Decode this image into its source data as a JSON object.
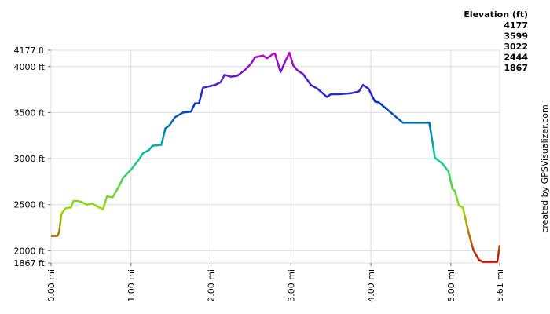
{
  "chart_data": {
    "type": "line",
    "x": [
      0,
      0.08,
      0.1,
      0.13,
      0.18,
      0.25,
      0.28,
      0.33,
      0.38,
      0.45,
      0.52,
      0.6,
      0.65,
      0.7,
      0.77,
      0.85,
      0.9,
      1.0,
      1.1,
      1.15,
      1.22,
      1.27,
      1.38,
      1.43,
      1.48,
      1.55,
      1.65,
      1.75,
      1.8,
      1.85,
      1.9,
      1.95,
      2.05,
      2.12,
      2.17,
      2.25,
      2.33,
      2.42,
      2.5,
      2.55,
      2.65,
      2.7,
      2.78,
      2.8,
      2.87,
      2.93,
      2.98,
      3.03,
      3.08,
      3.15,
      3.25,
      3.33,
      3.45,
      3.5,
      3.6,
      3.75,
      3.85,
      3.9,
      3.97,
      4.05,
      4.1,
      4.4,
      4.73,
      4.77,
      4.8,
      4.9,
      4.97,
      5.02,
      5.05,
      5.1,
      5.15,
      5.22,
      5.28,
      5.35,
      5.4,
      5.58,
      5.61
    ],
    "values": [
      2160,
      2160,
      2200,
      2400,
      2460,
      2470,
      2540,
      2540,
      2530,
      2500,
      2510,
      2470,
      2450,
      2590,
      2580,
      2700,
      2790,
      2880,
      2990,
      3060,
      3090,
      3140,
      3150,
      3330,
      3360,
      3450,
      3500,
      3510,
      3600,
      3600,
      3770,
      3780,
      3800,
      3830,
      3910,
      3890,
      3900,
      3960,
      4030,
      4100,
      4120,
      4090,
      4140,
      4140,
      3940,
      4060,
      4150,
      4010,
      3960,
      3920,
      3800,
      3760,
      3670,
      3700,
      3700,
      3710,
      3730,
      3800,
      3760,
      3620,
      3610,
      3390,
      3390,
      3180,
      3010,
      2940,
      2860,
      2670,
      2650,
      2490,
      2470,
      2200,
      2010,
      1900,
      1880,
      1880,
      2060
    ],
    "xlim": [
      0,
      5.61
    ],
    "ylim": [
      1867,
      4177
    ],
    "xticks": [
      {
        "value": 0,
        "label": "0.00 mi"
      },
      {
        "value": 1,
        "label": "1.00 mi"
      },
      {
        "value": 2,
        "label": "2.00 mi"
      },
      {
        "value": 3,
        "label": "3.00 mi"
      },
      {
        "value": 4,
        "label": "4.00 mi"
      },
      {
        "value": 5,
        "label": "5.00 mi"
      },
      {
        "value": 5.61,
        "label": "5.61 mi"
      }
    ],
    "yticks": [
      {
        "value": 1867,
        "label": "1867 ft"
      },
      {
        "value": 2000,
        "label": "2000 ft"
      },
      {
        "value": 2500,
        "label": "2500 ft"
      },
      {
        "value": 3000,
        "label": "3000 ft"
      },
      {
        "value": 3500,
        "label": "3500 ft"
      },
      {
        "value": 4000,
        "label": "4000 ft"
      },
      {
        "value": 4177,
        "label": "4177 ft"
      }
    ],
    "grid": true,
    "legend": {
      "title": "Elevation (ft)",
      "entries": [
        {
          "value": 4177,
          "color": "#cc00cc"
        },
        {
          "value": 3599,
          "color": "#0033cc"
        },
        {
          "value": 3022,
          "color": "#00cc99"
        },
        {
          "value": 2444,
          "color": "#99dd00"
        },
        {
          "value": 1867,
          "color": "#cc0000"
        }
      ]
    },
    "credit": "created by GPSVisualizer.com"
  }
}
